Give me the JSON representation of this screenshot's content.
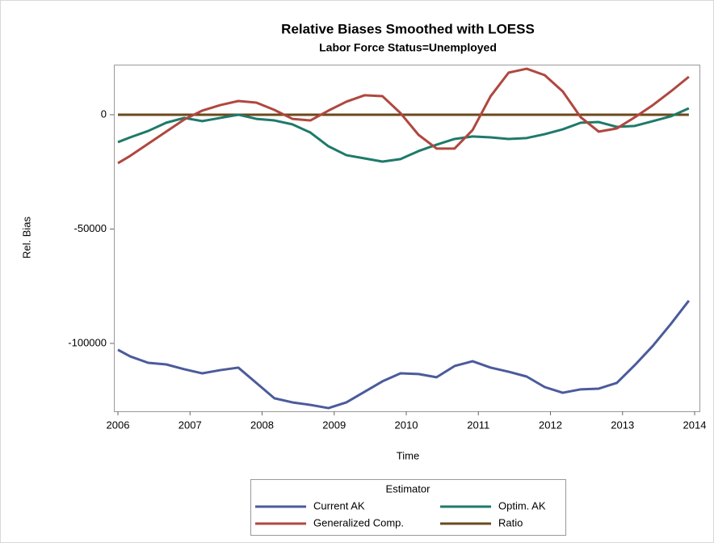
{
  "chart_data": {
    "type": "line",
    "title": "Relative Biases Smoothed with LOESS",
    "subtitle": "Labor Force Status=Unemployed",
    "x_label": "Time",
    "y_label": "Rel. Bias",
    "x": [
      2006.0,
      2006.17,
      2006.42,
      2006.67,
      2006.92,
      2007.17,
      2007.42,
      2007.67,
      2007.92,
      2008.17,
      2008.42,
      2008.67,
      2008.92,
      2009.17,
      2009.42,
      2009.67,
      2009.92,
      2010.17,
      2010.42,
      2010.67,
      2010.92,
      2011.17,
      2011.42,
      2011.67,
      2011.92,
      2012.17,
      2012.42,
      2012.67,
      2012.92,
      2013.17,
      2013.42,
      2013.67,
      2013.92
    ],
    "series": [
      {
        "name": "Current AK",
        "color": "#4b5b9b",
        "values": [
          -102800,
          -105700,
          -108500,
          -109200,
          -111300,
          -113100,
          -111700,
          -110600,
          -117300,
          -124000,
          -125800,
          -126900,
          -128300,
          -125800,
          -121200,
          -116600,
          -113100,
          -113400,
          -114800,
          -109900,
          -107800,
          -110600,
          -112400,
          -114500,
          -119100,
          -121600,
          -120100,
          -119800,
          -117300,
          -109500,
          -101100,
          -91500,
          -81300
        ]
      },
      {
        "name": "Optim. AK",
        "color": "#1e7a6a",
        "values": [
          -12000,
          -9900,
          -7100,
          -3500,
          -1400,
          -2800,
          -1400,
          0,
          -1800,
          -2500,
          -4200,
          -7800,
          -13800,
          -17700,
          -19100,
          -20500,
          -19400,
          -15900,
          -13100,
          -10600,
          -9500,
          -9900,
          -10600,
          -10200,
          -8500,
          -6400,
          -3500,
          -3200,
          -5300,
          -4900,
          -2800,
          -700,
          2800
        ]
      },
      {
        "name": "Generalized Comp.",
        "color": "#b0473f",
        "values": [
          -21200,
          -18000,
          -12700,
          -7400,
          -2100,
          1800,
          4200,
          6000,
          5300,
          2100,
          -1800,
          -2500,
          1800,
          5700,
          8500,
          8100,
          700,
          -8800,
          -14800,
          -14800,
          -6700,
          8100,
          18400,
          20100,
          17300,
          10200,
          -1100,
          -7400,
          -6000,
          -1100,
          4200,
          10200,
          16600
        ]
      },
      {
        "name": "Ratio",
        "color": "#6b4a1c",
        "values": [
          0,
          0,
          0,
          0,
          0,
          0,
          0,
          0,
          0,
          0,
          0,
          0,
          0,
          0,
          0,
          0,
          0,
          0,
          0,
          0,
          0,
          0,
          0,
          0,
          0,
          0,
          0,
          0,
          0,
          0,
          0,
          0,
          0
        ]
      }
    ],
    "xlim": [
      2005.944,
      2014.067
    ],
    "xticks": [
      2006,
      2007,
      2008,
      2009,
      2010,
      2011,
      2012,
      2013,
      2014
    ],
    "ylim": [
      -129700,
      21900
    ],
    "yticks": [
      -100000,
      -50000,
      0
    ],
    "legend_title": "Estimator",
    "legend_position": "bottom",
    "grid": false
  }
}
